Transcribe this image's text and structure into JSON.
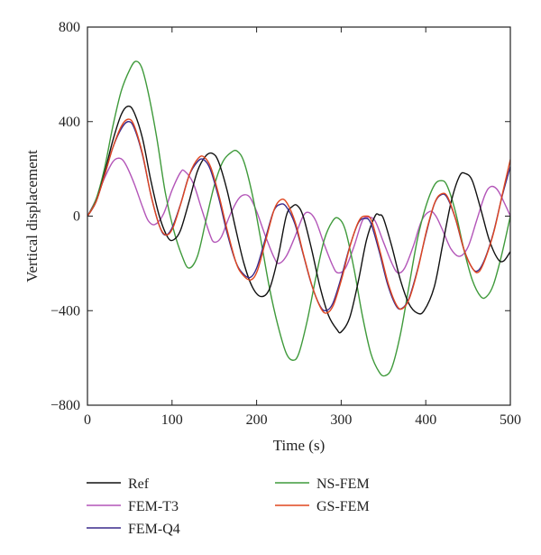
{
  "chart_data": {
    "type": "line",
    "title": "",
    "xlabel": "Time (s)",
    "ylabel": "Vertical displacement",
    "xlim": [
      0,
      500
    ],
    "ylim": [
      -800,
      800
    ],
    "xticks": [
      0,
      100,
      200,
      300,
      400,
      500
    ],
    "yticks": [
      -800,
      -400,
      0,
      400,
      800
    ],
    "grid": false,
    "legend_position": "bottom",
    "series": [
      {
        "name": "Ref",
        "color": "#111111",
        "points": [
          [
            0,
            0
          ],
          [
            10,
            60
          ],
          [
            20,
            180
          ],
          [
            30,
            320
          ],
          [
            40,
            430
          ],
          [
            48,
            465
          ],
          [
            55,
            440
          ],
          [
            65,
            330
          ],
          [
            75,
            150
          ],
          [
            85,
            0
          ],
          [
            95,
            -90
          ],
          [
            102,
            -100
          ],
          [
            110,
            -60
          ],
          [
            120,
            60
          ],
          [
            130,
            190
          ],
          [
            140,
            255
          ],
          [
            148,
            265
          ],
          [
            155,
            230
          ],
          [
            165,
            110
          ],
          [
            175,
            -50
          ],
          [
            185,
            -200
          ],
          [
            195,
            -300
          ],
          [
            205,
            -340
          ],
          [
            215,
            -310
          ],
          [
            225,
            -180
          ],
          [
            235,
            0
          ],
          [
            242,
            40
          ],
          [
            248,
            45
          ],
          [
            255,
            0
          ],
          [
            265,
            -140
          ],
          [
            275,
            -300
          ],
          [
            285,
            -420
          ],
          [
            295,
            -480
          ],
          [
            300,
            -490
          ],
          [
            310,
            -430
          ],
          [
            320,
            -280
          ],
          [
            330,
            -100
          ],
          [
            340,
            0
          ],
          [
            345,
            5
          ],
          [
            350,
            -10
          ],
          [
            360,
            -130
          ],
          [
            370,
            -270
          ],
          [
            380,
            -370
          ],
          [
            390,
            -410
          ],
          [
            398,
            -400
          ],
          [
            410,
            -300
          ],
          [
            420,
            -120
          ],
          [
            430,
            60
          ],
          [
            440,
            170
          ],
          [
            447,
            180
          ],
          [
            455,
            150
          ],
          [
            465,
            30
          ],
          [
            475,
            -100
          ],
          [
            485,
            -180
          ],
          [
            492,
            -190
          ],
          [
            500,
            -150
          ]
        ]
      },
      {
        "name": "FEM-T3",
        "color": "#b355b8",
        "points": [
          [
            0,
            0
          ],
          [
            10,
            70
          ],
          [
            20,
            160
          ],
          [
            30,
            230
          ],
          [
            38,
            245
          ],
          [
            45,
            220
          ],
          [
            55,
            140
          ],
          [
            65,
            40
          ],
          [
            72,
            -20
          ],
          [
            80,
            -35
          ],
          [
            90,
            10
          ],
          [
            100,
            110
          ],
          [
            110,
            185
          ],
          [
            115,
            190
          ],
          [
            125,
            140
          ],
          [
            135,
            30
          ],
          [
            145,
            -80
          ],
          [
            150,
            -110
          ],
          [
            158,
            -90
          ],
          [
            168,
            0
          ],
          [
            178,
            70
          ],
          [
            185,
            90
          ],
          [
            192,
            80
          ],
          [
            200,
            20
          ],
          [
            210,
            -80
          ],
          [
            220,
            -170
          ],
          [
            226,
            -200
          ],
          [
            235,
            -170
          ],
          [
            245,
            -90
          ],
          [
            255,
            0
          ],
          [
            262,
            15
          ],
          [
            270,
            -20
          ],
          [
            280,
            -120
          ],
          [
            290,
            -210
          ],
          [
            296,
            -240
          ],
          [
            305,
            -220
          ],
          [
            315,
            -130
          ],
          [
            325,
            -20
          ],
          [
            332,
            -5
          ],
          [
            340,
            -20
          ],
          [
            350,
            -110
          ],
          [
            360,
            -200
          ],
          [
            367,
            -240
          ],
          [
            375,
            -220
          ],
          [
            385,
            -130
          ],
          [
            395,
            -20
          ],
          [
            405,
            20
          ],
          [
            412,
            0
          ],
          [
            420,
            -60
          ],
          [
            430,
            -140
          ],
          [
            440,
            -170
          ],
          [
            450,
            -130
          ],
          [
            460,
            -20
          ],
          [
            470,
            90
          ],
          [
            477,
            125
          ],
          [
            485,
            110
          ],
          [
            495,
            40
          ],
          [
            500,
            0
          ]
        ]
      },
      {
        "name": "FEM-Q4",
        "color": "#3a2a8c",
        "points": [
          [
            0,
            0
          ],
          [
            10,
            60
          ],
          [
            20,
            170
          ],
          [
            30,
            290
          ],
          [
            40,
            370
          ],
          [
            48,
            400
          ],
          [
            55,
            375
          ],
          [
            65,
            260
          ],
          [
            75,
            90
          ],
          [
            85,
            -40
          ],
          [
            92,
            -80
          ],
          [
            100,
            -50
          ],
          [
            110,
            50
          ],
          [
            120,
            170
          ],
          [
            130,
            230
          ],
          [
            137,
            240
          ],
          [
            145,
            200
          ],
          [
            155,
            80
          ],
          [
            165,
            -70
          ],
          [
            175,
            -190
          ],
          [
            183,
            -240
          ],
          [
            192,
            -260
          ],
          [
            200,
            -220
          ],
          [
            210,
            -100
          ],
          [
            220,
            20
          ],
          [
            228,
            50
          ],
          [
            235,
            40
          ],
          [
            245,
            -30
          ],
          [
            255,
            -160
          ],
          [
            265,
            -290
          ],
          [
            275,
            -380
          ],
          [
            282,
            -400
          ],
          [
            290,
            -370
          ],
          [
            300,
            -260
          ],
          [
            310,
            -130
          ],
          [
            320,
            -30
          ],
          [
            328,
            -10
          ],
          [
            335,
            -30
          ],
          [
            345,
            -150
          ],
          [
            355,
            -290
          ],
          [
            365,
            -380
          ],
          [
            372,
            -390
          ],
          [
            380,
            -350
          ],
          [
            390,
            -230
          ],
          [
            400,
            -80
          ],
          [
            410,
            50
          ],
          [
            418,
            90
          ],
          [
            425,
            80
          ],
          [
            435,
            -10
          ],
          [
            445,
            -140
          ],
          [
            455,
            -220
          ],
          [
            462,
            -230
          ],
          [
            470,
            -180
          ],
          [
            480,
            -70
          ],
          [
            490,
            80
          ],
          [
            500,
            210
          ]
        ]
      },
      {
        "name": "NS-FEM",
        "color": "#3f9a3b",
        "points": [
          [
            0,
            0
          ],
          [
            10,
            70
          ],
          [
            20,
            200
          ],
          [
            30,
            380
          ],
          [
            40,
            530
          ],
          [
            50,
            620
          ],
          [
            57,
            655
          ],
          [
            64,
            630
          ],
          [
            72,
            520
          ],
          [
            82,
            330
          ],
          [
            92,
            100
          ],
          [
            102,
            -60
          ],
          [
            112,
            -170
          ],
          [
            120,
            -220
          ],
          [
            130,
            -170
          ],
          [
            140,
            -20
          ],
          [
            150,
            130
          ],
          [
            160,
            230
          ],
          [
            170,
            270
          ],
          [
            177,
            275
          ],
          [
            185,
            230
          ],
          [
            195,
            90
          ],
          [
            205,
            -100
          ],
          [
            215,
            -300
          ],
          [
            225,
            -460
          ],
          [
            235,
            -580
          ],
          [
            243,
            -610
          ],
          [
            250,
            -580
          ],
          [
            260,
            -440
          ],
          [
            270,
            -260
          ],
          [
            280,
            -100
          ],
          [
            290,
            -20
          ],
          [
            297,
            -10
          ],
          [
            305,
            -60
          ],
          [
            315,
            -220
          ],
          [
            325,
            -420
          ],
          [
            335,
            -580
          ],
          [
            345,
            -660
          ],
          [
            352,
            -675
          ],
          [
            360,
            -640
          ],
          [
            370,
            -500
          ],
          [
            380,
            -300
          ],
          [
            390,
            -100
          ],
          [
            400,
            40
          ],
          [
            410,
            130
          ],
          [
            418,
            150
          ],
          [
            425,
            130
          ],
          [
            435,
            20
          ],
          [
            445,
            -140
          ],
          [
            455,
            -270
          ],
          [
            465,
            -340
          ],
          [
            472,
            -340
          ],
          [
            480,
            -290
          ],
          [
            490,
            -160
          ],
          [
            500,
            0
          ]
        ]
      },
      {
        "name": "GS-FEM",
        "color": "#e0461f",
        "points": [
          [
            0,
            0
          ],
          [
            10,
            60
          ],
          [
            20,
            170
          ],
          [
            30,
            290
          ],
          [
            40,
            380
          ],
          [
            48,
            410
          ],
          [
            55,
            385
          ],
          [
            65,
            265
          ],
          [
            75,
            90
          ],
          [
            85,
            -40
          ],
          [
            93,
            -80
          ],
          [
            101,
            -50
          ],
          [
            111,
            60
          ],
          [
            121,
            180
          ],
          [
            131,
            245
          ],
          [
            138,
            250
          ],
          [
            146,
            205
          ],
          [
            156,
            80
          ],
          [
            166,
            -70
          ],
          [
            176,
            -200
          ],
          [
            184,
            -250
          ],
          [
            193,
            -270
          ],
          [
            201,
            -230
          ],
          [
            211,
            -100
          ],
          [
            221,
            30
          ],
          [
            229,
            70
          ],
          [
            236,
            55
          ],
          [
            246,
            -30
          ],
          [
            256,
            -170
          ],
          [
            266,
            -300
          ],
          [
            276,
            -390
          ],
          [
            283,
            -410
          ],
          [
            291,
            -375
          ],
          [
            301,
            -260
          ],
          [
            311,
            -120
          ],
          [
            321,
            -20
          ],
          [
            329,
            0
          ],
          [
            336,
            -20
          ],
          [
            346,
            -150
          ],
          [
            356,
            -290
          ],
          [
            366,
            -380
          ],
          [
            373,
            -390
          ],
          [
            381,
            -345
          ],
          [
            391,
            -220
          ],
          [
            401,
            -60
          ],
          [
            411,
            60
          ],
          [
            419,
            95
          ],
          [
            426,
            80
          ],
          [
            436,
            -20
          ],
          [
            446,
            -150
          ],
          [
            456,
            -225
          ],
          [
            463,
            -235
          ],
          [
            471,
            -175
          ],
          [
            481,
            -60
          ],
          [
            491,
            100
          ],
          [
            500,
            240
          ]
        ]
      }
    ]
  }
}
